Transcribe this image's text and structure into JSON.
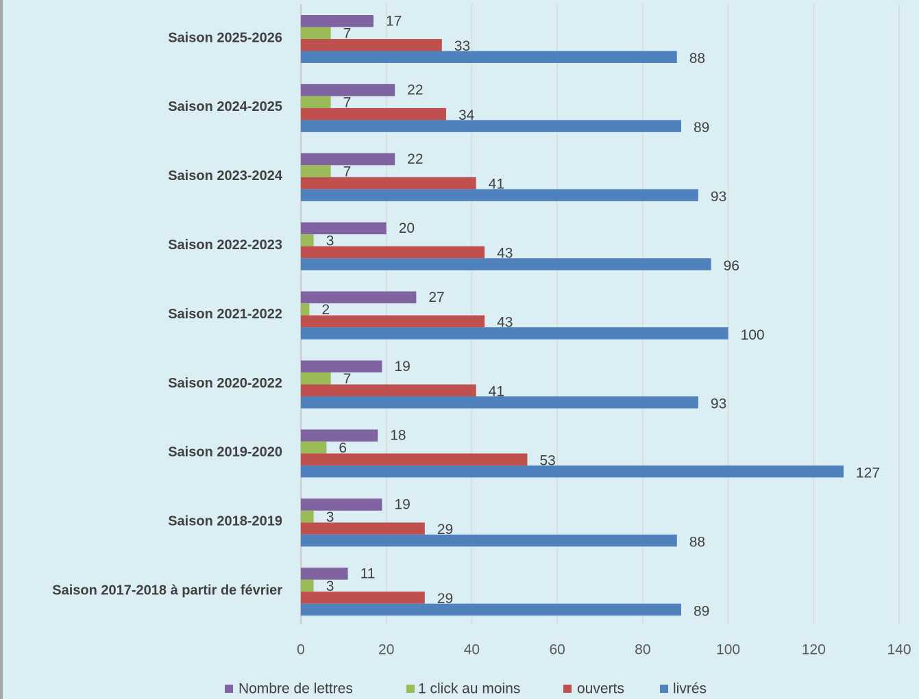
{
  "chart_data": {
    "type": "bar",
    "orientation": "horizontal",
    "categories": [
      "Saison 2025-2026",
      "Saison 2024-2025",
      "Saison 2023-2024",
      "Saison 2022-2023",
      "Saison 2021-2022",
      "Saison 2020-2022",
      "Saison 2019-2020",
      "Saison 2018-2019",
      "Saison 2017-2018 à partir de février"
    ],
    "series": [
      {
        "name": "Nombre de lettres",
        "color": "#8064a2",
        "values": [
          17,
          22,
          22,
          20,
          27,
          19,
          18,
          19,
          11
        ]
      },
      {
        "name": "1 click au moins",
        "color": "#9bbb59",
        "values": [
          7,
          7,
          7,
          3,
          2,
          7,
          6,
          3,
          3
        ]
      },
      {
        "name": "ouverts",
        "color": "#c0504d",
        "values": [
          33,
          34,
          41,
          43,
          43,
          41,
          53,
          29,
          29
        ]
      },
      {
        "name": "livrés",
        "color": "#4f81bd",
        "values": [
          88,
          89,
          93,
          96,
          100,
          93,
          127,
          88,
          89
        ]
      }
    ],
    "xlim": [
      0,
      140
    ],
    "xticks": [
      0,
      20,
      40,
      60,
      80,
      100,
      120,
      140
    ],
    "grid": true,
    "legend": "bottom"
  }
}
